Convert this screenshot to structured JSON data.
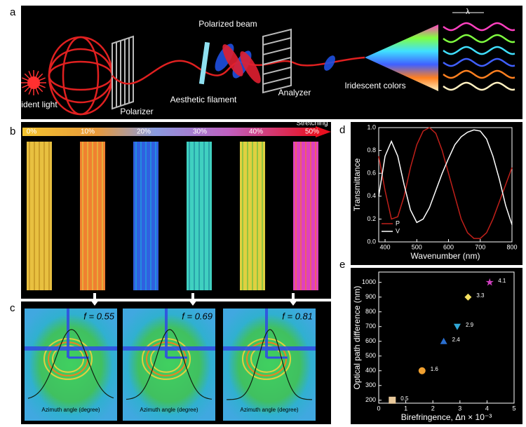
{
  "panel_a": {
    "label": "a",
    "incident": "Incident light",
    "polarizer": "Polarizer",
    "beam": "Polarized beam",
    "filament": "Aesthetic filament",
    "analyzer": "Analyzer",
    "colors": "Iridescent colors",
    "lambda": "λ"
  },
  "panel_b": {
    "label": "b",
    "stretching": "Stretching",
    "scale": [
      "0%",
      "10%",
      "20%",
      "30%",
      "40%",
      "50%"
    ]
  },
  "panel_c": {
    "label": "c",
    "f_labels": [
      "f = 0.55",
      "f = 0.69",
      "f = 0.81"
    ],
    "x_label": "Azimuth angle (degree)"
  },
  "chart_data": [
    {
      "type": "line",
      "label": "d",
      "x": [
        380,
        400,
        420,
        440,
        460,
        480,
        500,
        520,
        540,
        560,
        580,
        600,
        620,
        640,
        660,
        680,
        700,
        720,
        740,
        760,
        780,
        800
      ],
      "series": [
        {
          "name": "P",
          "color": "#c0201a",
          "values": [
            0.75,
            0.45,
            0.2,
            0.22,
            0.4,
            0.65,
            0.85,
            0.97,
            1.0,
            0.95,
            0.8,
            0.6,
            0.4,
            0.2,
            0.08,
            0.03,
            0.03,
            0.08,
            0.2,
            0.35,
            0.5,
            0.65
          ]
        },
        {
          "name": "V",
          "color": "#ffffff",
          "values": [
            0.4,
            0.75,
            0.88,
            0.75,
            0.5,
            0.28,
            0.17,
            0.2,
            0.3,
            0.45,
            0.6,
            0.73,
            0.85,
            0.92,
            0.96,
            0.98,
            0.97,
            0.9,
            0.75,
            0.55,
            0.32,
            0.15
          ]
        }
      ],
      "xlim": [
        380,
        800
      ],
      "ylim": [
        0,
        1.0
      ],
      "xticks": [
        400,
        500,
        600,
        700,
        800
      ],
      "yticks": [
        {
          "value": 0,
          "label": "0.0"
        },
        0.2,
        0.4,
        0.6,
        0.8,
        {
          "value": 1.0,
          "label": "1.0"
        }
      ],
      "x_label": "Wavenumber (nm)",
      "y_label": "Transmittance",
      "legend": "lower left"
    },
    {
      "type": "scatter",
      "label": "e",
      "x": [
        0.5,
        1.6,
        2.4,
        2.9,
        3.3,
        4.1
      ],
      "values": [
        200,
        400,
        600,
        700,
        900,
        1000
      ],
      "colors": [
        "#e8c89a",
        "#f0a030",
        "#2a6fd0",
        "#30a8d8",
        "#f5e060",
        "#d040c0"
      ],
      "markers": [
        "square",
        "circle",
        "triangle",
        "triangle-down",
        "diamond",
        "star"
      ],
      "xlim": [
        0,
        5
      ],
      "ylim": [
        180,
        1070
      ],
      "xticks": [
        0,
        1,
        2,
        3,
        4,
        5
      ],
      "yticks": [
        200,
        300,
        400,
        500,
        600,
        700,
        800,
        900,
        1000
      ],
      "x_label": "Birefringence, Δn × 10⁻³",
      "y_label": "Optical path difference (nm)"
    }
  ]
}
